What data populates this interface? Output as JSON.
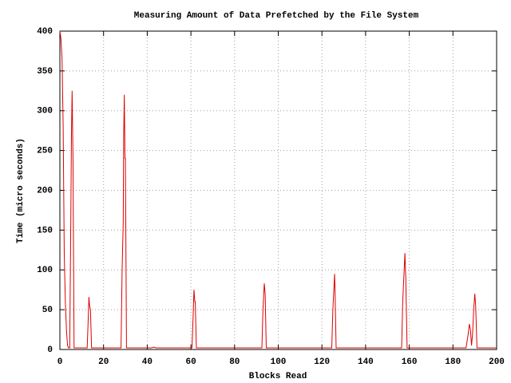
{
  "chart_data": {
    "type": "line",
    "title": "Measuring Amount of Data Prefetched by the File System",
    "x_label": "Blocks Read",
    "y_label": "Time (micro seconds)",
    "x": [
      0,
      0.5,
      1,
      1.5,
      2,
      2.5,
      3,
      3.5,
      4,
      4.5,
      5,
      5.3,
      5.6,
      6,
      6.5,
      12,
      12.5,
      13,
      13.3,
      13.6,
      14,
      14.5,
      28,
      28.5,
      29,
      29.2,
      29.5,
      29.8,
      30,
      30.5,
      42,
      43,
      44,
      60,
      60.5,
      61,
      61.4,
      61.8,
      62,
      62.5,
      92,
      92.5,
      93,
      93.6,
      94,
      94.5,
      124,
      124.5,
      125,
      125.8,
      126,
      126.5,
      156,
      156.5,
      157,
      158,
      158.4,
      159,
      186,
      187,
      187.5,
      188,
      188.5,
      189,
      189.5,
      190,
      190.4,
      191,
      200
    ],
    "series": [
      {
        "color": "#dd0000",
        "values": [
          400,
          390,
          365,
          280,
          120,
          60,
          25,
          5,
          2,
          2,
          160,
          270,
          325,
          240,
          2,
          2,
          2,
          40,
          66,
          55,
          50,
          2,
          2,
          100,
          160,
          265,
          320,
          240,
          240,
          2,
          2,
          3,
          2,
          2,
          2,
          40,
          75,
          60,
          60,
          2,
          2,
          2,
          50,
          83,
          70,
          2,
          2,
          2,
          50,
          95,
          75,
          2,
          2,
          2,
          60,
          121,
          90,
          2,
          2,
          20,
          32,
          25,
          5,
          20,
          50,
          70,
          55,
          2,
          2
        ]
      }
    ],
    "xlim": [
      0,
      200
    ],
    "xticks": [
      0,
      20,
      40,
      60,
      80,
      100,
      120,
      140,
      160,
      180,
      200
    ],
    "ylim": [
      0,
      400
    ],
    "yticks": [
      0,
      50,
      100,
      150,
      200,
      250,
      300,
      350,
      400
    ],
    "grid": true
  }
}
